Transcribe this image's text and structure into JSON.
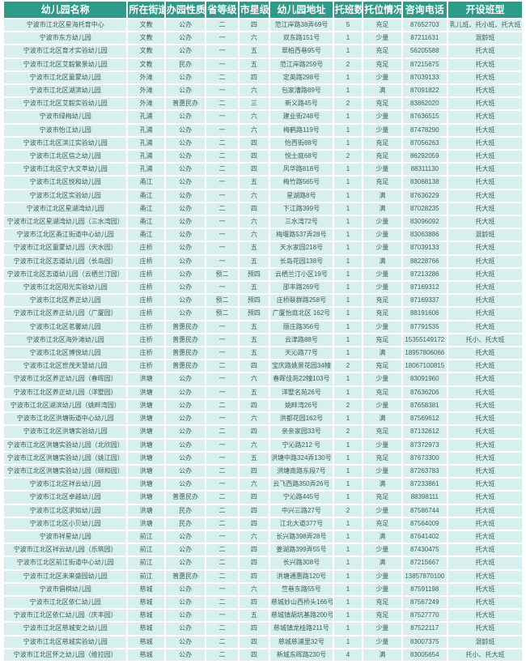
{
  "colors": {
    "header_bg": "#2e9a89",
    "header_text": "#ffffff",
    "cell_bg": "#d7f0ee",
    "cell_text": "#3f5e5a",
    "grid": "#ffffff"
  },
  "chart_data": {
    "type": "table",
    "columns": [
      "幼儿园名称",
      "所在街道",
      "办园性质",
      "省等级",
      "市星级",
      "幼儿园地址",
      "托班数",
      "托位情况",
      "咨询电话",
      "开设班型"
    ],
    "rows": [
      [
        "宁波市江北区星海托育中心",
        "文教",
        "公办",
        "二",
        "四",
        "范江岸路38弄69号",
        "5",
        "充足",
        "87652703",
        "乳儿班、托小班、托大班"
      ],
      [
        "宁波市东方幼儿园",
        "文教",
        "公办",
        "一",
        "六",
        "双东路151号",
        "1",
        "少量",
        "87211631",
        "混龄班"
      ],
      [
        "宁波市江北区育才实验幼儿园",
        "文教",
        "公办",
        "一",
        "五",
        "翠柏西巷95号",
        "1",
        "充足",
        "56205588",
        "托大班"
      ],
      [
        "宁波市江北区艾毅繁景幼儿园",
        "文教",
        "民办",
        "一",
        "五",
        "范江岸路259号",
        "2",
        "充足",
        "87215675",
        "托大班"
      ],
      [
        "宁波市江北区童蒙幼儿园",
        "外滩",
        "公办",
        "二",
        "四",
        "定英路298号",
        "1",
        "少量",
        "87039133",
        "托大班"
      ],
      [
        "宁波市江北区湖滨幼儿园",
        "外滩",
        "公办",
        "一",
        "六",
        "包家漕路89号",
        "1",
        "满",
        "87091822",
        "托大班"
      ],
      [
        "宁波市江北区艾毅实验幼儿园",
        "外滩",
        "普惠民办",
        "二",
        "三",
        "新义路45号",
        "2",
        "充足",
        "83862020",
        "托大班"
      ],
      [
        "宁波市绿梅幼儿园",
        "孔浦",
        "公办",
        "一",
        "六",
        "建业街248号",
        "1",
        "少量",
        "87636515",
        "托大班"
      ],
      [
        "宁波市怡江幼儿园",
        "孔浦",
        "公办",
        "一",
        "六",
        "梅鹤路119号",
        "1",
        "少量",
        "87478290",
        "托大班"
      ],
      [
        "宁波市江北区滨江实验幼儿园",
        "孔浦",
        "公办",
        "二",
        "四",
        "怡西街88号",
        "1",
        "充足",
        "87056263",
        "托大班"
      ],
      [
        "宁波市江北区信之幼儿园",
        "孔浦",
        "公办",
        "二",
        "四",
        "悦士庭68号",
        "2",
        "充足",
        "86292059",
        "托大班"
      ],
      [
        "宁波市江北区宁大文萃幼儿园",
        "孔浦",
        "公办",
        "二",
        "四",
        "风华路818号",
        "1",
        "少量",
        "88311130",
        "托大班"
      ],
      [
        "宁波市江北区悦和幼儿园",
        "甬江",
        "公办",
        "一",
        "五",
        "梅竹路565号",
        "1",
        "充足",
        "83068138",
        "托大班"
      ],
      [
        "宁波市江北区实验幼儿园",
        "甬江",
        "公办",
        "一",
        "六",
        "星湖路8号",
        "1",
        "满",
        "87636229",
        "托大班"
      ],
      [
        "宁波市江北区星湖湾幼儿园",
        "甬江",
        "公办",
        "二",
        "四",
        "下江路399号",
        "1",
        "满",
        "87028235",
        "托大班"
      ],
      [
        "宁波市江北区星湖湾幼儿园（三水湾园）",
        "甬江",
        "公办",
        "一",
        "六",
        "三水湾72号",
        "1",
        "少量",
        "83096092",
        "托大班"
      ],
      [
        "宁波市江北区甬江街道中心幼儿园",
        "甬江",
        "公办",
        "一",
        "六",
        "梅堰路537弄28号",
        "1",
        "少量",
        "83063886",
        "混龄班"
      ],
      [
        "宁波市江北区童蒙幼儿园（天水园）",
        "庄桥",
        "公办",
        "一",
        "五",
        "天水家园218号",
        "1",
        "少量",
        "87039133",
        "托大班"
      ],
      [
        "宁波市江北区志道幼儿园（长岛园）",
        "庄桥",
        "公办",
        "一",
        "五",
        "长岛花园138号",
        "1",
        "满",
        "88228766",
        "托大班"
      ],
      [
        "宁波市江北区志道幼儿园（云栖兰汀园）",
        "庄桥",
        "公办",
        "预二",
        "预四",
        "云栖兰汀小区19号",
        "1",
        "少量",
        "87213286",
        "托大班"
      ],
      [
        "宁波市江北区阳光实验幼儿园",
        "庄桥",
        "公办",
        "一",
        "五",
        "邵丰路269号",
        "1",
        "少量",
        "87169312",
        "托大班"
      ],
      [
        "宁波市江北区养正幼儿园",
        "庄桥",
        "公办",
        "预二",
        "预四",
        "庄桥联群路258号",
        "1",
        "充足",
        "87169337",
        "托大班"
      ],
      [
        "宁波市江北区养正幼儿园（广厦园）",
        "庄桥",
        "公办",
        "预二",
        "预四",
        "广厦怡庭北区 162号",
        "1",
        "充足",
        "88191606",
        "托大班"
      ],
      [
        "宁波市江北区茗馨幼儿园",
        "庄桥",
        "普惠民办",
        "一",
        "五",
        "丽庄路356号",
        "1",
        "少量",
        "87791535",
        "托大班"
      ],
      [
        "宁波市江北区海外滩幼儿园",
        "庄桥",
        "普惠民办",
        "一",
        "五",
        "云津路88号",
        "1",
        "充足",
        "15355149172",
        "托小、托大班"
      ],
      [
        "宁波市江北区博悦幼儿园",
        "庄桥",
        "普惠民办",
        "一",
        "五",
        "天沁路77号",
        "1",
        "满",
        "18957806066",
        "托大班"
      ],
      [
        "宁波市江北区世茂天慧幼儿园",
        "庄桥",
        "普惠民办",
        "二",
        "四",
        "宝庆路姚景花园34幢",
        "2",
        "充足",
        "18067100815",
        "托大班"
      ],
      [
        "宁波市江北区养正幼儿园（春晖园）",
        "洪塘",
        "公办",
        "一",
        "六",
        "春晖佳苑22幢103号",
        "1",
        "少量",
        "83091960",
        "托大班"
      ],
      [
        "宁波市江北区养正幼儿园（洋墅园）",
        "洪塘",
        "公办",
        "一",
        "五",
        "洋墅名苑26号",
        "1",
        "充足",
        "87636206",
        "托大班"
      ],
      [
        "宁波市江北区湖滨幼儿园（姚畔湾园）",
        "洪塘",
        "公办",
        "二",
        "四",
        "姚畔湾26号",
        "2",
        "少量",
        "87658381",
        "托大班"
      ],
      [
        "宁波市江北区洪塘街道中心幼儿园",
        "洪塘",
        "公办",
        "一",
        "六",
        "洪都花园162号",
        "1",
        "满",
        "87569612",
        "托大班"
      ],
      [
        "宁波市江北区洪塘实验幼儿园",
        "洪塘",
        "公办",
        "二",
        "四",
        "亲亲家园33号",
        "2",
        "充足",
        "87132612",
        "托大班"
      ],
      [
        "宁波市江北区洪塘实验幼儿园（北欣园）",
        "洪塘",
        "公办",
        "一",
        "六",
        "宁沁路212 号",
        "1",
        "少量",
        "87372973",
        "托大班"
      ],
      [
        "宁波市江北区洪塘实验幼儿园（姚江园）",
        "洪塘",
        "公办",
        "一",
        "五",
        "洪塘中路324弄130号",
        "1",
        "充足",
        "87673300",
        "托大班"
      ],
      [
        "宁波市江北区洪塘实验幼儿园（颐和园）",
        "洪塘",
        "公办",
        "二",
        "四",
        "洪塘南路东段7号",
        "1",
        "少量",
        "87263783",
        "托大班"
      ],
      [
        "宁波市江北区祥云幼儿园",
        "洪塘",
        "公办",
        "一",
        "六",
        "云飞西路350弄26号",
        "1",
        "满",
        "87233861",
        "托大班"
      ],
      [
        "宁波市江北区卓越幼儿园",
        "洪塘",
        "普惠民办",
        "二",
        "四",
        "宁沁路445号",
        "1",
        "充足",
        "88398111",
        "托大班"
      ],
      [
        "宁波市江北区求知幼儿园",
        "洪塘",
        "民办",
        "二",
        "四",
        "中兴三路27号",
        "2",
        "少量",
        "87586744",
        "托大班"
      ],
      [
        "宁波市江北区小贝幼儿园",
        "洪塘",
        "民办",
        "二",
        "四",
        "江北大道377号",
        "1",
        "充足",
        "87564009",
        "托大班"
      ],
      [
        "宁波市祥星幼儿园",
        "前江",
        "公办",
        "一",
        "六",
        "长兴路398弄28号",
        "1",
        "满",
        "87641402",
        "托大班"
      ],
      [
        "宁波市江北区祥云幼儿园（乐筑园）",
        "前江",
        "公办",
        "二",
        "四",
        "姜湖路399弄55号",
        "1",
        "少量",
        "87430475",
        "托大班"
      ],
      [
        "宁波市江北区前江街道中心幼儿园",
        "前江",
        "公办",
        "二",
        "四",
        "长兴路308号",
        "1",
        "满",
        "87215667",
        "托大班"
      ],
      [
        "宁波市江北区未来盛园幼儿园",
        "前江",
        "普惠民办",
        "二",
        "四",
        "洪塘通惠路120号",
        "1",
        "少量",
        "13857870100",
        "托大班"
      ],
      [
        "宁波市倡棋幼儿园",
        "慈城",
        "公办",
        "一",
        "六",
        "竺巷东路55号",
        "1",
        "少量",
        "87591198",
        "托大班"
      ],
      [
        "宁波市江北区依仁幼儿园",
        "慈城",
        "公办",
        "二",
        "四",
        "慈城妙山西桥头166号",
        "1",
        "充足",
        "87567249",
        "托大班"
      ],
      [
        "宁波市江北区依仁幼儿园（庆丰园）",
        "慈城",
        "公办",
        "一",
        "五",
        "慈城镇胡坑基路200号",
        "1",
        "充足",
        "87527770",
        "托大班"
      ],
      [
        "宁波市江北区慈城安之幼儿园",
        "慈城",
        "公办",
        "二",
        "四",
        "慈城镇龙桂路211号",
        "1",
        "少量",
        "87522117",
        "托大班"
      ],
      [
        "宁波市江北区慈城实验幼儿园",
        "慈城",
        "公办",
        "二",
        "四",
        "慈城慈浦里32号",
        "1",
        "少量",
        "83007375",
        "混龄班"
      ],
      [
        "宁波市江北区怀之幼儿园（维拉园）",
        "慈城",
        "公办",
        "二",
        "四",
        "新城东晖路230号",
        "4",
        "满",
        "83005654",
        "托小、托大班"
      ]
    ]
  }
}
